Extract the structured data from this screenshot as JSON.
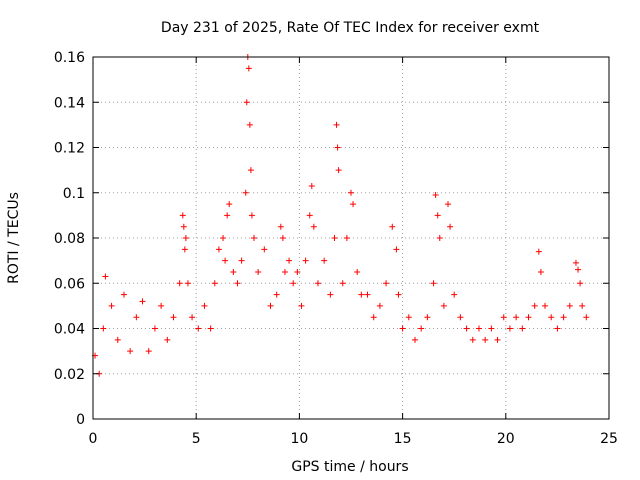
{
  "chart_data": {
    "type": "scatter",
    "title": "Day 231 of 2025, Rate Of TEC Index for receiver exmt",
    "xlabel": "GPS time / hours",
    "ylabel": "ROTI / TECUs",
    "xlim": [
      0,
      25
    ],
    "ylim": [
      0,
      0.16
    ],
    "xticks": [
      0,
      5,
      10,
      15,
      20,
      25
    ],
    "xtick_labels": [
      "0",
      "5",
      "10",
      "15",
      "20",
      "25"
    ],
    "yticks": [
      0,
      0.02,
      0.04,
      0.06,
      0.08,
      0.1,
      0.12,
      0.14,
      0.16
    ],
    "ytick_labels": [
      "0",
      "0.02",
      "0.04",
      "0.06",
      "0.08",
      "0.1",
      "0.12",
      "0.14",
      "0.16"
    ],
    "grid": true,
    "marker": "+",
    "color": "#ff0000",
    "series": [
      {
        "name": "ROTI",
        "x": [
          0.1,
          0.3,
          0.5,
          0.6,
          0.9,
          1.2,
          1.5,
          1.8,
          2.1,
          2.4,
          2.7,
          3.0,
          3.3,
          3.6,
          3.9,
          4.2,
          4.35,
          4.4,
          4.45,
          4.5,
          4.6,
          4.8,
          5.1,
          5.4,
          5.7,
          5.9,
          6.1,
          6.3,
          6.4,
          6.5,
          6.6,
          6.8,
          7.0,
          7.2,
          7.4,
          7.45,
          7.5,
          7.55,
          7.6,
          7.65,
          7.7,
          7.8,
          8.0,
          8.3,
          8.6,
          8.9,
          9.1,
          9.2,
          9.3,
          9.5,
          9.7,
          9.9,
          10.1,
          10.3,
          10.5,
          10.6,
          10.7,
          10.9,
          11.2,
          11.5,
          11.7,
          11.8,
          11.85,
          11.9,
          12.1,
          12.3,
          12.5,
          12.6,
          12.8,
          13.0,
          13.3,
          13.6,
          13.9,
          14.2,
          14.5,
          14.7,
          14.8,
          15.0,
          15.3,
          15.6,
          15.9,
          16.2,
          16.5,
          16.6,
          16.7,
          16.8,
          17.0,
          17.2,
          17.3,
          17.5,
          17.8,
          18.1,
          18.4,
          18.7,
          19.0,
          19.3,
          19.6,
          19.9,
          20.2,
          20.5,
          20.8,
          21.1,
          21.4,
          21.6,
          21.7,
          21.9,
          22.2,
          22.5,
          22.8,
          23.1,
          23.4,
          23.5,
          23.6,
          23.7,
          23.9
        ],
        "y": [
          0.028,
          0.02,
          0.04,
          0.063,
          0.05,
          0.035,
          0.055,
          0.03,
          0.045,
          0.052,
          0.03,
          0.04,
          0.05,
          0.035,
          0.045,
          0.06,
          0.09,
          0.085,
          0.075,
          0.08,
          0.06,
          0.045,
          0.04,
          0.05,
          0.04,
          0.06,
          0.075,
          0.08,
          0.07,
          0.09,
          0.095,
          0.065,
          0.06,
          0.07,
          0.1,
          0.14,
          0.16,
          0.155,
          0.13,
          0.11,
          0.09,
          0.08,
          0.065,
          0.075,
          0.05,
          0.055,
          0.085,
          0.08,
          0.065,
          0.07,
          0.06,
          0.065,
          0.05,
          0.07,
          0.09,
          0.103,
          0.085,
          0.06,
          0.07,
          0.055,
          0.08,
          0.13,
          0.12,
          0.11,
          0.06,
          0.08,
          0.1,
          0.095,
          0.065,
          0.055,
          0.055,
          0.045,
          0.05,
          0.06,
          0.085,
          0.075,
          0.055,
          0.04,
          0.045,
          0.035,
          0.04,
          0.045,
          0.06,
          0.099,
          0.09,
          0.08,
          0.05,
          0.095,
          0.085,
          0.055,
          0.045,
          0.04,
          0.035,
          0.04,
          0.035,
          0.04,
          0.035,
          0.045,
          0.04,
          0.045,
          0.04,
          0.045,
          0.05,
          0.074,
          0.065,
          0.05,
          0.045,
          0.04,
          0.045,
          0.05,
          0.069,
          0.066,
          0.06,
          0.05,
          0.045
        ]
      }
    ]
  }
}
